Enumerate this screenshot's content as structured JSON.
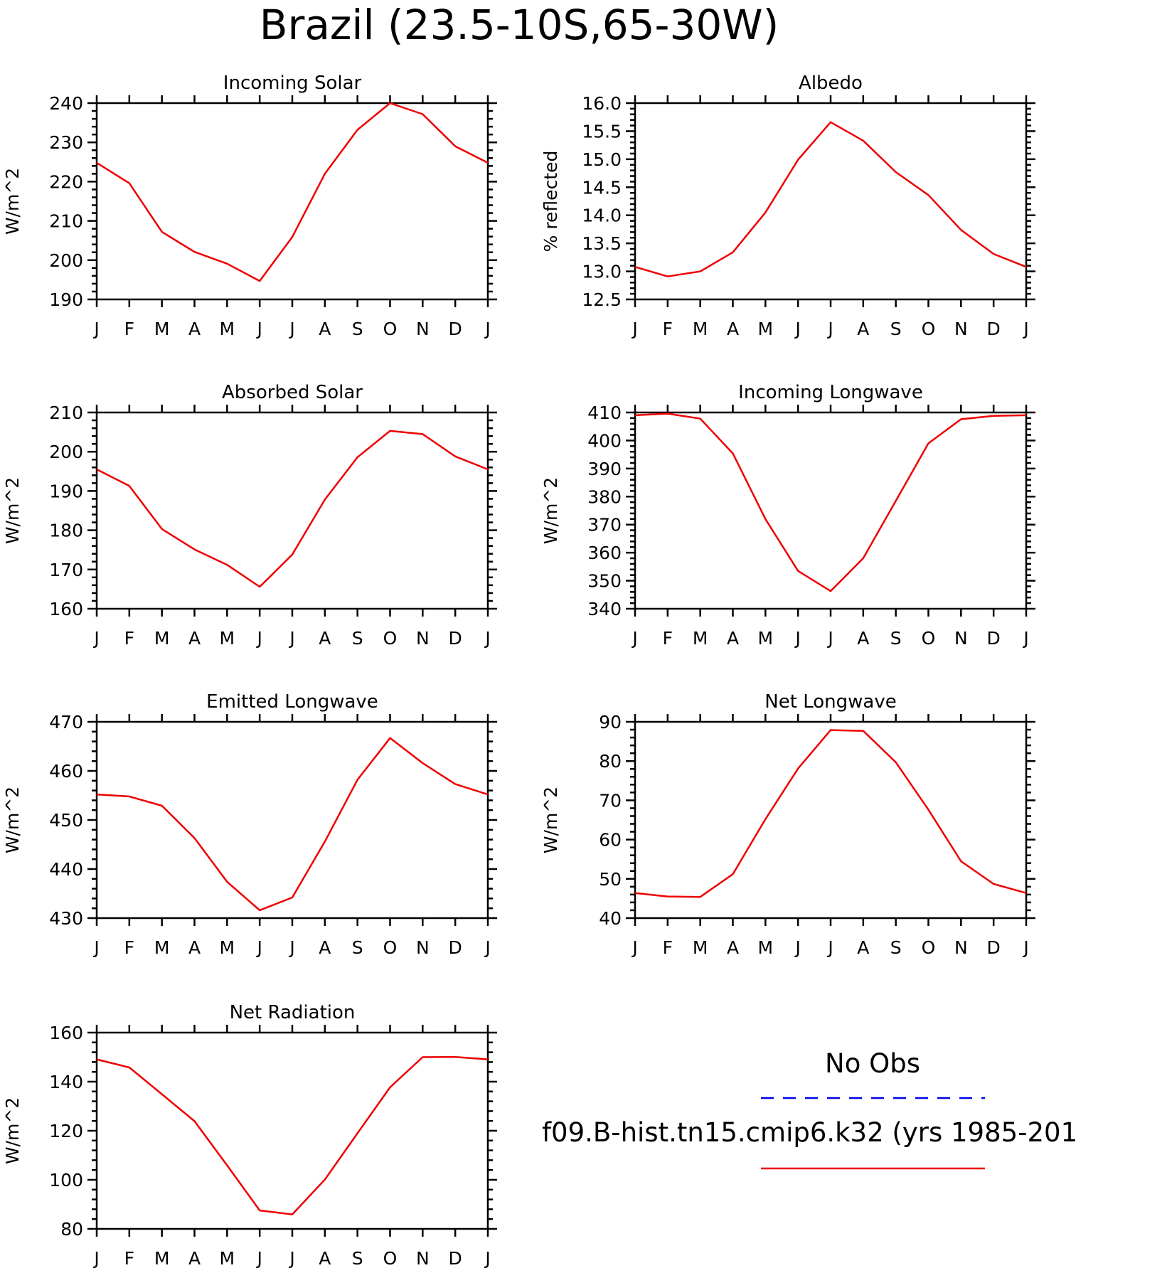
{
  "page_title": "Brazil (23.5-10S,65-30W)",
  "chart_data": [
    {
      "type": "line",
      "title": "Incoming Solar",
      "xlabel": "",
      "ylabel": "W/m^2",
      "categories": [
        "J",
        "F",
        "M",
        "A",
        "M",
        "J",
        "J",
        "A",
        "S",
        "O",
        "N",
        "D",
        "J"
      ],
      "ylim": [
        190,
        240
      ],
      "yticks": [
        "190",
        "200",
        "210",
        "220",
        "230",
        "240"
      ],
      "series": [
        {
          "name": "f09.B-hist.tn15.cmip6.k32 (yrs 1985-201",
          "color": "#ee0000",
          "values": [
            224.8,
            219.6,
            207.2,
            202.1,
            199.1,
            194.7,
            205.9,
            222.0,
            233.2,
            240.0,
            237.2,
            229.0,
            224.8
          ]
        }
      ]
    },
    {
      "type": "line",
      "title": "Albedo",
      "xlabel": "",
      "ylabel": "% reflected",
      "categories": [
        "J",
        "F",
        "M",
        "A",
        "M",
        "J",
        "J",
        "A",
        "S",
        "O",
        "N",
        "D",
        "J"
      ],
      "ylim": [
        12.5,
        16.0
      ],
      "yticks": [
        "12.5",
        "13.0",
        "13.5",
        "14.0",
        "14.5",
        "15.0",
        "15.5",
        "16.0"
      ],
      "series": [
        {
          "name": "f09.B-hist.tn15.cmip6.k32 (yrs 1985-201",
          "color": "#ee0000",
          "values": [
            13.08,
            12.91,
            13.0,
            13.34,
            14.05,
            14.99,
            15.66,
            15.33,
            14.77,
            14.36,
            13.74,
            13.31,
            13.08
          ]
        }
      ]
    },
    {
      "type": "line",
      "title": "Absorbed Solar",
      "xlabel": "",
      "ylabel": "W/m^2",
      "categories": [
        "J",
        "F",
        "M",
        "A",
        "M",
        "J",
        "J",
        "A",
        "S",
        "O",
        "N",
        "D",
        "J"
      ],
      "ylim": [
        160,
        210
      ],
      "yticks": [
        "160",
        "170",
        "180",
        "190",
        "200",
        "210"
      ],
      "series": [
        {
          "name": "f09.B-hist.tn15.cmip6.k32 (yrs 1985-201",
          "color": "#ee0000",
          "values": [
            195.5,
            191.3,
            180.3,
            175.1,
            171.2,
            165.6,
            173.8,
            187.8,
            198.6,
            205.3,
            204.5,
            198.8,
            195.5
          ]
        }
      ]
    },
    {
      "type": "line",
      "title": "Incoming Longwave",
      "xlabel": "",
      "ylabel": "W/m^2",
      "categories": [
        "J",
        "F",
        "M",
        "A",
        "M",
        "J",
        "J",
        "A",
        "S",
        "O",
        "N",
        "D",
        "J"
      ],
      "ylim": [
        340,
        410
      ],
      "yticks": [
        "340",
        "350",
        "360",
        "370",
        "380",
        "390",
        "400",
        "410"
      ],
      "series": [
        {
          "name": "f09.B-hist.tn15.cmip6.k32 (yrs 1985-201",
          "color": "#ee0000",
          "values": [
            409.0,
            409.6,
            407.8,
            395.4,
            372.0,
            353.5,
            346.3,
            358.0,
            378.5,
            399.0,
            407.6,
            408.8,
            409.0
          ]
        }
      ]
    },
    {
      "type": "line",
      "title": "Emitted Longwave",
      "xlabel": "",
      "ylabel": "W/m^2",
      "categories": [
        "J",
        "F",
        "M",
        "A",
        "M",
        "J",
        "J",
        "A",
        "S",
        "O",
        "N",
        "D",
        "J"
      ],
      "ylim": [
        430,
        470
      ],
      "yticks": [
        "430",
        "440",
        "450",
        "460",
        "470"
      ],
      "series": [
        {
          "name": "f09.B-hist.tn15.cmip6.k32 (yrs 1985-201",
          "color": "#ee0000",
          "values": [
            455.2,
            454.8,
            452.9,
            446.3,
            437.4,
            431.6,
            434.2,
            445.6,
            458.2,
            466.7,
            461.6,
            457.3,
            455.2
          ]
        }
      ]
    },
    {
      "type": "line",
      "title": "Net Longwave",
      "xlabel": "",
      "ylabel": "W/m^2",
      "categories": [
        "J",
        "F",
        "M",
        "A",
        "M",
        "J",
        "J",
        "A",
        "S",
        "O",
        "N",
        "D",
        "J"
      ],
      "ylim": [
        40,
        90
      ],
      "yticks": [
        "40",
        "50",
        "60",
        "70",
        "80",
        "90"
      ],
      "series": [
        {
          "name": "f09.B-hist.tn15.cmip6.k32 (yrs 1985-201",
          "color": "#ee0000",
          "values": [
            46.4,
            45.5,
            45.4,
            51.2,
            65.2,
            78.1,
            87.9,
            87.7,
            79.7,
            67.6,
            54.5,
            48.7,
            46.4
          ]
        }
      ]
    },
    {
      "type": "line",
      "title": "Net Radiation",
      "xlabel": "",
      "ylabel": "W/m^2",
      "categories": [
        "J",
        "F",
        "M",
        "A",
        "M",
        "J",
        "J",
        "A",
        "S",
        "O",
        "N",
        "D",
        "J"
      ],
      "ylim": [
        80,
        160
      ],
      "yticks": [
        "80",
        "100",
        "120",
        "140",
        "160"
      ],
      "series": [
        {
          "name": "f09.B-hist.tn15.cmip6.k32 (yrs 1985-201",
          "color": "#ee0000",
          "values": [
            149.1,
            145.8,
            134.9,
            123.9,
            105.9,
            87.5,
            85.9,
            100.1,
            119.0,
            137.7,
            150.0,
            150.1,
            149.1
          ]
        }
      ]
    }
  ],
  "legend": {
    "items": [
      {
        "label": "No Obs",
        "color": "#0000ee",
        "style": "dashed"
      },
      {
        "label": "f09.B-hist.tn15.cmip6.k32 (yrs 1985-201",
        "color": "#ee0000",
        "style": "solid"
      }
    ]
  }
}
